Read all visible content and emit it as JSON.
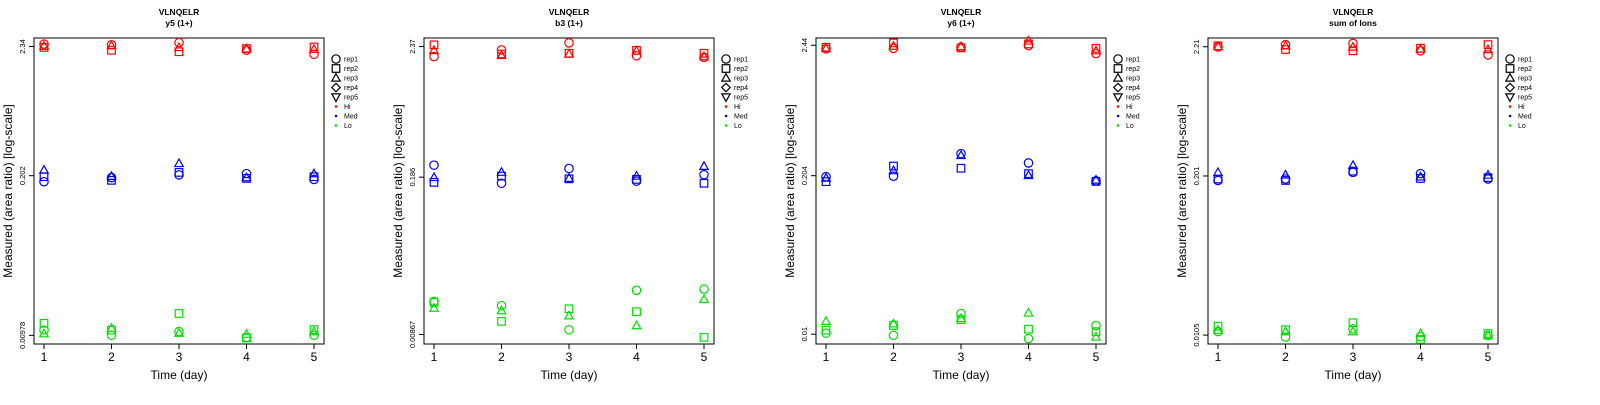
{
  "figure": {
    "shared_xlabel": "Time (day)",
    "shared_ylabel": "Measured (area ratio) [log-scale]"
  },
  "legend": {
    "replicates": [
      {
        "label": "rep1",
        "symbol": "circle"
      },
      {
        "label": "rep2",
        "symbol": "square"
      },
      {
        "label": "rep3",
        "symbol": "triangle-up"
      },
      {
        "label": "rep4",
        "symbol": "diamond"
      },
      {
        "label": "rep5",
        "symbol": "triangle-down"
      }
    ],
    "levels": [
      {
        "label": "Hi",
        "color": "#ff0000"
      },
      {
        "label": "Med",
        "color": "#0000ff"
      },
      {
        "label": "Lo",
        "color": "#00dd00"
      }
    ]
  },
  "chart_data": [
    {
      "type": "scatter",
      "title": "VLNQELR",
      "subtitle": "y5 (1+)",
      "xlabel": "Time (day)",
      "ylabel": "Measured (area ratio) [log-scale]",
      "scale": "log",
      "x": [
        1,
        2,
        3,
        4,
        5
      ],
      "yticks": [
        "0.00978",
        "0.202",
        "2.34"
      ],
      "ylim": [
        0.0083,
        2.75
      ],
      "series": [
        {
          "name": "Hi rep1",
          "level": "Hi",
          "rep": "rep1",
          "values": [
            2.45,
            2.42,
            2.52,
            2.18,
            2.02
          ]
        },
        {
          "name": "Hi rep2",
          "level": "Hi",
          "rep": "rep2",
          "values": [
            2.3,
            2.18,
            2.12,
            2.25,
            2.32
          ]
        },
        {
          "name": "Hi rep3",
          "level": "Hi",
          "rep": "rep3",
          "values": [
            2.36,
            2.38,
            2.3,
            2.24,
            2.22
          ]
        },
        {
          "name": "Med rep1",
          "level": "Med",
          "rep": "rep1",
          "values": [
            0.18,
            0.195,
            0.205,
            0.21,
            0.188
          ]
        },
        {
          "name": "Med rep2",
          "level": "Med",
          "rep": "rep2",
          "values": [
            0.198,
            0.185,
            0.215,
            0.192,
            0.198
          ]
        },
        {
          "name": "Med rep3",
          "level": "Med",
          "rep": "rep3",
          "values": [
            0.225,
            0.2,
            0.255,
            0.195,
            0.21
          ]
        },
        {
          "name": "Lo rep1",
          "level": "Lo",
          "rep": "rep1",
          "values": [
            0.0108,
            0.0098,
            0.0105,
            0.0094,
            0.0098
          ]
        },
        {
          "name": "Lo rep2",
          "level": "Lo",
          "rep": "rep2",
          "values": [
            0.0123,
            0.0108,
            0.0148,
            0.0093,
            0.0109
          ]
        },
        {
          "name": "Lo rep3",
          "level": "Lo",
          "rep": "rep3",
          "values": [
            0.0101,
            0.0112,
            0.0102,
            0.01,
            0.0105
          ]
        }
      ]
    },
    {
      "type": "scatter",
      "title": "VLNQELR",
      "subtitle": "b3 (1+)",
      "xlabel": "Time (day)",
      "ylabel": "Measured (area ratio) [log-scale]",
      "scale": "log",
      "x": [
        1,
        2,
        3,
        4,
        5
      ],
      "yticks": [
        "0.00867",
        "0.186",
        "2.37"
      ],
      "ylim": [
        0.0072,
        2.8
      ],
      "series": [
        {
          "name": "Hi rep1",
          "level": "Hi",
          "rep": "rep1",
          "values": [
            1.95,
            2.22,
            2.55,
            1.98,
            1.92
          ]
        },
        {
          "name": "Hi rep2",
          "level": "Hi",
          "rep": "rep2",
          "values": [
            2.45,
            2.05,
            2.08,
            2.2,
            2.08
          ]
        },
        {
          "name": "Hi rep3",
          "level": "Hi",
          "rep": "rep3",
          "values": [
            2.2,
            2.0,
            2.05,
            2.18,
            1.95
          ]
        },
        {
          "name": "Med rep1",
          "level": "Med",
          "rep": "rep1",
          "values": [
            0.235,
            0.165,
            0.22,
            0.172,
            0.195
          ]
        },
        {
          "name": "Med rep2",
          "level": "Med",
          "rep": "rep2",
          "values": [
            0.168,
            0.19,
            0.18,
            0.178,
            0.165
          ]
        },
        {
          "name": "Med rep3",
          "level": "Med",
          "rep": "rep3",
          "values": [
            0.185,
            0.205,
            0.182,
            0.19,
            0.23
          ]
        },
        {
          "name": "Lo rep1",
          "level": "Lo",
          "rep": "rep1",
          "values": [
            0.0165,
            0.0152,
            0.0095,
            0.0205,
            0.021
          ]
        },
        {
          "name": "Lo rep2",
          "level": "Lo",
          "rep": "rep2",
          "values": [
            0.0162,
            0.0112,
            0.0143,
            0.0135,
            0.0082
          ]
        },
        {
          "name": "Lo rep3",
          "level": "Lo",
          "rep": "rep3",
          "values": [
            0.0145,
            0.0138,
            0.0125,
            0.0103,
            0.0172
          ]
        }
      ]
    },
    {
      "type": "scatter",
      "title": "VLNQELR",
      "subtitle": "y6 (1+)",
      "xlabel": "Time (day)",
      "ylabel": "Measured (area ratio) [log-scale]",
      "scale": "log",
      "x": [
        1,
        2,
        3,
        4,
        5
      ],
      "yticks": [
        "0.01",
        "0.204",
        "2.44"
      ],
      "ylim": [
        0.0083,
        2.8
      ],
      "series": [
        {
          "name": "Hi rep1",
          "level": "Hi",
          "rep": "rep1",
          "values": [
            2.28,
            2.3,
            2.35,
            2.42,
            2.08
          ]
        },
        {
          "name": "Hi rep2",
          "level": "Hi",
          "rep": "rep2",
          "values": [
            2.35,
            2.55,
            2.32,
            2.5,
            2.3
          ]
        },
        {
          "name": "Hi rep3",
          "level": "Hi",
          "rep": "rep3",
          "values": [
            2.3,
            2.4,
            2.38,
            2.65,
            2.2
          ]
        },
        {
          "name": "Med rep1",
          "level": "Med",
          "rep": "rep1",
          "values": [
            0.2,
            0.202,
            0.31,
            0.26,
            0.185
          ]
        },
        {
          "name": "Med rep2",
          "level": "Med",
          "rep": "rep2",
          "values": [
            0.182,
            0.245,
            0.235,
            0.212,
            0.183
          ]
        },
        {
          "name": "Med rep3",
          "level": "Med",
          "rep": "rep3",
          "values": [
            0.195,
            0.225,
            0.3,
            0.205,
            0.188
          ]
        },
        {
          "name": "Lo rep1",
          "level": "Lo",
          "rep": "rep1",
          "values": [
            0.0102,
            0.0098,
            0.0148,
            0.0092,
            0.0118
          ]
        },
        {
          "name": "Lo rep2",
          "level": "Lo",
          "rep": "rep2",
          "values": [
            0.0108,
            0.0118,
            0.0132,
            0.011,
            0.0105
          ]
        },
        {
          "name": "Lo rep3",
          "level": "Lo",
          "rep": "rep3",
          "values": [
            0.0128,
            0.0122,
            0.0135,
            0.015,
            0.0095
          ]
        }
      ]
    },
    {
      "type": "scatter",
      "title": "VLNQELR",
      "subtitle": "sum of Ions",
      "xlabel": "Time (day)",
      "ylabel": "Measured (area ratio) [log-scale]",
      "scale": "log",
      "x": [
        1,
        2,
        3,
        4,
        5
      ],
      "yticks": [
        "0.0105",
        "0.201",
        "2.21"
      ],
      "ylim": [
        0.0089,
        2.6
      ],
      "series": [
        {
          "name": "Hi rep1",
          "level": "Hi",
          "rep": "rep1",
          "values": [
            2.2,
            2.3,
            2.35,
            2.05,
            1.9
          ]
        },
        {
          "name": "Hi rep2",
          "level": "Hi",
          "rep": "rep2",
          "values": [
            2.25,
            2.1,
            2.05,
            2.15,
            2.3
          ]
        },
        {
          "name": "Hi rep3",
          "level": "Hi",
          "rep": "rep3",
          "values": [
            2.22,
            2.25,
            2.2,
            2.12,
            2.1
          ]
        },
        {
          "name": "Med rep1",
          "level": "Med",
          "rep": "rep1",
          "values": [
            0.185,
            0.19,
            0.215,
            0.21,
            0.19
          ]
        },
        {
          "name": "Med rep2",
          "level": "Med",
          "rep": "rep2",
          "values": [
            0.19,
            0.185,
            0.22,
            0.192,
            0.195
          ]
        },
        {
          "name": "Med rep3",
          "level": "Med",
          "rep": "rep3",
          "values": [
            0.215,
            0.205,
            0.245,
            0.198,
            0.205
          ]
        },
        {
          "name": "Lo rep1",
          "level": "Lo",
          "rep": "rep1",
          "values": [
            0.0112,
            0.0101,
            0.0118,
            0.0102,
            0.0104
          ]
        },
        {
          "name": "Lo rep2",
          "level": "Lo",
          "rep": "rep2",
          "values": [
            0.0124,
            0.0116,
            0.0132,
            0.0097,
            0.0108
          ]
        },
        {
          "name": "Lo rep3",
          "level": "Lo",
          "rep": "rep3",
          "values": [
            0.0115,
            0.0112,
            0.0112,
            0.0108,
            0.0104
          ]
        }
      ]
    }
  ]
}
